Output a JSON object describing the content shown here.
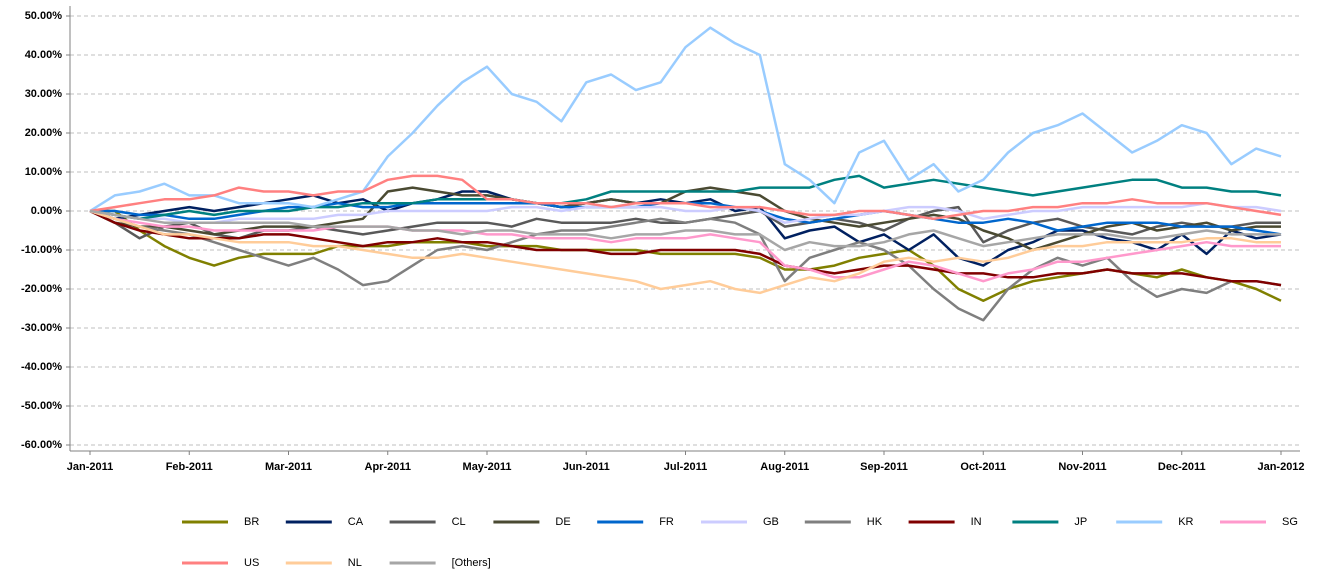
{
  "chart_data": {
    "type": "line",
    "categories": [
      "Jan-2011",
      null,
      null,
      null,
      "Feb-2011",
      null,
      null,
      null,
      "Mar-2011",
      null,
      null,
      null,
      "Apr-2011",
      null,
      null,
      null,
      "May-2011",
      null,
      null,
      null,
      "Jun-2011",
      null,
      null,
      null,
      "Jul-2011",
      null,
      null,
      null,
      "Aug-2011",
      null,
      null,
      null,
      "Sep-2011",
      null,
      null,
      null,
      "Oct-2011",
      null,
      null,
      null,
      "Nov-2011",
      null,
      null,
      null,
      "Dec-2011",
      null,
      null,
      null,
      "Jan-2012"
    ],
    "ylim": [
      -60,
      50
    ],
    "yticks": [
      {
        "value": 50,
        "label": "50.00%"
      },
      {
        "value": 40,
        "label": "40.00%"
      },
      {
        "value": 30,
        "label": "30.00%"
      },
      {
        "value": 20,
        "label": "20.00%"
      },
      {
        "value": 10,
        "label": "10.00%"
      },
      {
        "value": 0,
        "label": "0.00%"
      },
      {
        "value": -10,
        "label": "-10.00%"
      },
      {
        "value": -20,
        "label": "-20.00%"
      },
      {
        "value": -30,
        "label": "-30.00%"
      },
      {
        "value": -40,
        "label": "-40.00%"
      },
      {
        "value": -50,
        "label": "-50.00%"
      },
      {
        "value": -60,
        "label": "-60.00%"
      }
    ],
    "grid": true,
    "legend": "bottom",
    "series": [
      {
        "name": "BR",
        "color": "#808000",
        "values": [
          0,
          0,
          -5,
          -9,
          -12,
          -14,
          -12,
          -11,
          -11,
          -11,
          -9,
          -9,
          -9,
          -8,
          -8,
          -8,
          -9,
          -9,
          -9,
          -10,
          -10,
          -10,
          -10,
          -11,
          -11,
          -11,
          -11,
          -12,
          -15,
          -15,
          -14,
          -12,
          -11,
          -10,
          -14,
          -20,
          -23,
          -20,
          -18,
          -17,
          -16,
          -15,
          -16,
          -17,
          -15,
          -17,
          -18,
          -20,
          -23
        ]
      },
      {
        "name": "CA",
        "color": "#002060",
        "values": [
          0,
          -2,
          -1,
          0,
          1,
          0,
          1,
          2,
          3,
          4,
          2,
          3,
          0,
          2,
          3,
          5,
          5,
          3,
          2,
          1,
          2,
          3,
          2,
          3,
          2,
          3,
          0,
          1,
          -7,
          -5,
          -4,
          -8,
          -6,
          -10,
          -6,
          -12,
          -14,
          -10,
          -8,
          -5,
          -5,
          -7,
          -8,
          -10,
          -6,
          -11,
          -5,
          -7,
          -6
        ]
      },
      {
        "name": "CL",
        "color": "#595959",
        "values": [
          0,
          -3,
          -7,
          -4,
          -3,
          -6,
          -7,
          -5,
          -5,
          -4,
          -5,
          -6,
          -5,
          -4,
          -3,
          -3,
          -3,
          -4,
          -2,
          -3,
          -3,
          -3,
          -2,
          -3,
          -3,
          -2,
          -1,
          0,
          -4,
          -3,
          -2,
          -3,
          -5,
          -2,
          0,
          1,
          -8,
          -5,
          -3,
          -2,
          -4,
          -5,
          -6,
          -4,
          -3,
          -4,
          -4,
          -3,
          -3
        ]
      },
      {
        "name": "DE",
        "color": "#4a4a32",
        "values": [
          0,
          -3,
          -4,
          -4,
          -5,
          -6,
          -5,
          -4,
          -4,
          -4,
          -3,
          -2,
          5,
          6,
          5,
          4,
          4,
          3,
          2,
          1,
          2,
          3,
          2,
          2,
          5,
          6,
          5,
          4,
          0,
          -2,
          -3,
          -4,
          -3,
          -2,
          -1,
          -2,
          -5,
          -7,
          -10,
          -8,
          -6,
          -4,
          -3,
          -5,
          -4,
          -3,
          -5,
          -4,
          -4
        ]
      },
      {
        "name": "FR",
        "color": "#0066cc",
        "values": [
          0,
          0,
          -1,
          -1,
          -2,
          -2,
          -1,
          0,
          1,
          1,
          2,
          1,
          1,
          2,
          2,
          2,
          2,
          2,
          2,
          1,
          1,
          1,
          1,
          2,
          2,
          2,
          1,
          0,
          -2,
          -3,
          -2,
          -1,
          0,
          -1,
          -2,
          -3,
          -3,
          -2,
          -3,
          -5,
          -4,
          -3,
          -3,
          -3,
          -4,
          -4,
          -4,
          -5,
          -6
        ]
      },
      {
        "name": "GB",
        "color": "#ccccff",
        "values": [
          0,
          -1,
          -2,
          -2,
          -3,
          -3,
          -2,
          -2,
          -2,
          -2,
          -1,
          -1,
          0,
          0,
          0,
          0,
          0,
          1,
          1,
          0,
          1,
          1,
          1,
          1,
          0,
          0,
          1,
          0,
          -3,
          -2,
          -1,
          -1,
          0,
          1,
          1,
          0,
          -2,
          -1,
          0,
          0,
          1,
          1,
          1,
          1,
          1,
          2,
          1,
          1,
          0
        ]
      },
      {
        "name": "HK",
        "color": "#7f7f7f",
        "values": [
          0,
          -2,
          -4,
          -5,
          -6,
          -8,
          -10,
          -12,
          -14,
          -12,
          -15,
          -19,
          -18,
          -14,
          -10,
          -9,
          -10,
          -8,
          -6,
          -5,
          -5,
          -4,
          -3,
          -2,
          -3,
          -2,
          -3,
          -6,
          -18,
          -12,
          -10,
          -8,
          -10,
          -14,
          -20,
          -25,
          -28,
          -20,
          -15,
          -12,
          -14,
          -12,
          -18,
          -22,
          -20,
          -21,
          -18,
          -18,
          -19
        ]
      },
      {
        "name": "IN",
        "color": "#800000",
        "values": [
          0,
          -3,
          -5,
          -6,
          -7,
          -7,
          -7,
          -6,
          -6,
          -7,
          -8,
          -9,
          -8,
          -8,
          -7,
          -8,
          -8,
          -9,
          -10,
          -10,
          -10,
          -11,
          -11,
          -10,
          -10,
          -10,
          -10,
          -11,
          -14,
          -15,
          -16,
          -15,
          -14,
          -14,
          -15,
          -16,
          -16,
          -17,
          -17,
          -16,
          -16,
          -15,
          -16,
          -16,
          -16,
          -17,
          -18,
          -18,
          -19
        ]
      },
      {
        "name": "JP",
        "color": "#008080",
        "values": [
          0,
          -1,
          -2,
          -1,
          0,
          -1,
          0,
          0,
          0,
          1,
          1,
          2,
          2,
          2,
          3,
          3,
          3,
          3,
          2,
          2,
          3,
          5,
          5,
          5,
          5,
          5,
          5,
          6,
          6,
          6,
          8,
          9,
          6,
          7,
          8,
          7,
          6,
          5,
          4,
          5,
          6,
          7,
          8,
          8,
          6,
          6,
          5,
          5,
          4
        ]
      },
      {
        "name": "KR",
        "color": "#99ccff",
        "values": [
          0,
          4,
          5,
          7,
          4,
          4,
          2,
          2,
          2,
          1,
          3,
          5,
          14,
          20,
          27,
          33,
          37,
          30,
          28,
          23,
          33,
          35,
          31,
          33,
          42,
          47,
          43,
          40,
          12,
          8,
          2,
          15,
          18,
          8,
          12,
          5,
          8,
          15,
          20,
          22,
          25,
          20,
          15,
          18,
          22,
          20,
          12,
          16,
          14
        ]
      },
      {
        "name": "SG",
        "color": "#ff99cc",
        "values": [
          0,
          -2,
          -3,
          -4,
          -4,
          -5,
          -5,
          -5,
          -5,
          -5,
          -4,
          -4,
          -4,
          -5,
          -5,
          -5,
          -6,
          -6,
          -7,
          -7,
          -7,
          -8,
          -7,
          -7,
          -7,
          -6,
          -7,
          -8,
          -14,
          -15,
          -17,
          -17,
          -15,
          -13,
          -14,
          -16,
          -18,
          -16,
          -15,
          -13,
          -13,
          -12,
          -11,
          -10,
          -9,
          -8,
          -9,
          -9,
          -9
        ]
      },
      {
        "name": "US",
        "color": "#ff8080",
        "values": [
          0,
          1,
          2,
          3,
          3,
          4,
          6,
          5,
          5,
          4,
          5,
          5,
          8,
          9,
          9,
          8,
          3,
          3,
          2,
          2,
          2,
          1,
          2,
          2,
          2,
          1,
          1,
          1,
          0,
          -1,
          -1,
          0,
          0,
          -1,
          -2,
          -1,
          0,
          0,
          1,
          1,
          2,
          2,
          3,
          2,
          2,
          2,
          1,
          0,
          -1
        ]
      },
      {
        "name": "NL",
        "color": "#ffcc99",
        "values": [
          0,
          -2,
          -4,
          -6,
          -6,
          -7,
          -8,
          -8,
          -8,
          -9,
          -9,
          -10,
          -11,
          -12,
          -12,
          -11,
          -12,
          -13,
          -14,
          -15,
          -16,
          -17,
          -18,
          -20,
          -19,
          -18,
          -20,
          -21,
          -19,
          -17,
          -18,
          -16,
          -13,
          -12,
          -13,
          -12,
          -13,
          -12,
          -10,
          -9,
          -9,
          -8,
          -8,
          -8,
          -8,
          -7,
          -7,
          -8,
          -8
        ]
      },
      {
        "name": "[Others]",
        "color": "#a6a6a6",
        "values": [
          0,
          -1,
          -2,
          -3,
          -3,
          -3,
          -3,
          -3,
          -3,
          -4,
          -4,
          -4,
          -4,
          -5,
          -5,
          -6,
          -5,
          -5,
          -6,
          -6,
          -6,
          -7,
          -6,
          -6,
          -5,
          -5,
          -6,
          -6,
          -10,
          -8,
          -9,
          -9,
          -8,
          -6,
          -5,
          -7,
          -9,
          -8,
          -7,
          -6,
          -6,
          -6,
          -7,
          -7,
          -6,
          -5,
          -6,
          -6,
          -6
        ]
      }
    ]
  }
}
